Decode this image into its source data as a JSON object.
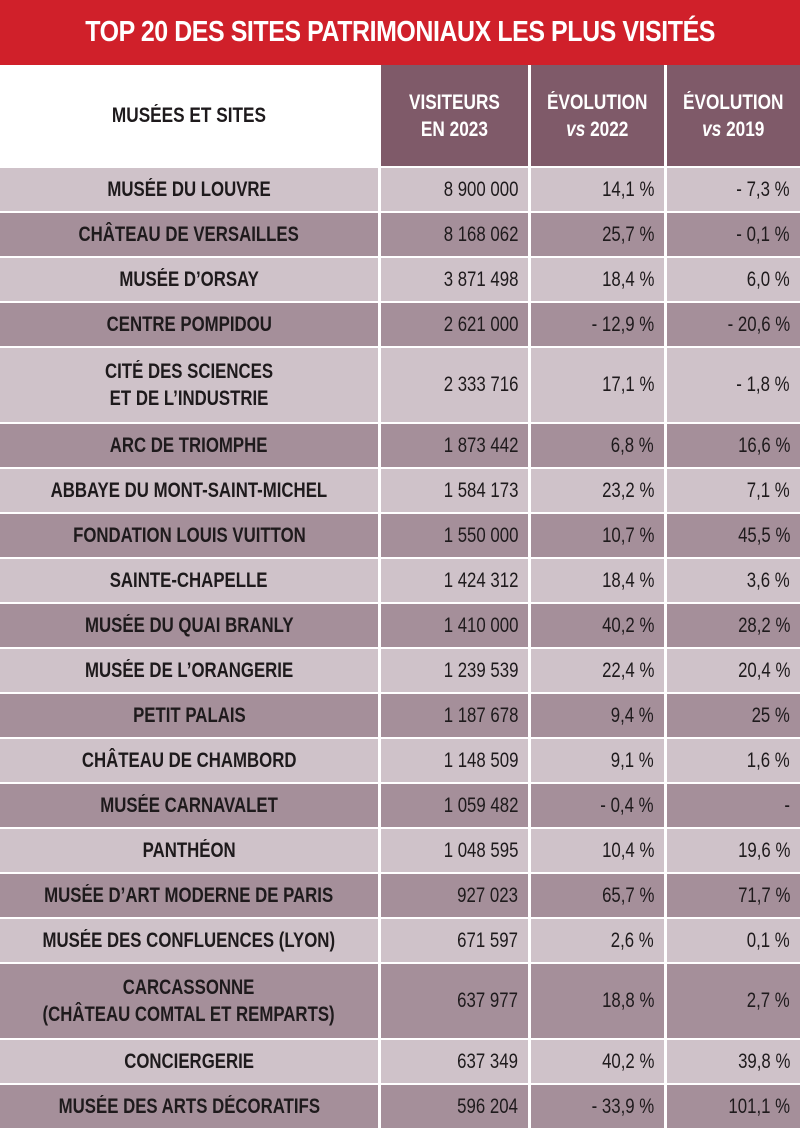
{
  "title": "TOP 20 DES SITES PATRIMONIAUX LES PLUS VISITÉS",
  "colors": {
    "title_bg": "#d0202a",
    "header_bg": "#7f5a69",
    "row_light": "#cfc2c9",
    "row_dark": "#a58f9a",
    "text": "#1e1a1c"
  },
  "headers": {
    "site": "MUSÉES ET SITES",
    "visitors_line1": "VISITEURS",
    "visitors_line2": "EN 2023",
    "evo2022_line1": "ÉVOLUTION",
    "evo2022_vs": "vs",
    "evo2022_year": " 2022",
    "evo2019_line1": "ÉVOLUTION",
    "evo2019_vs": "vs",
    "evo2019_year": " 2019"
  },
  "rows": [
    {
      "site": "MUSÉE DU LOUVRE",
      "visitors": "8 900 000",
      "evo2022": "14,1 %",
      "evo2019": "- 7,3 %"
    },
    {
      "site": "CHÂTEAU DE VERSAILLES",
      "visitors": "8 168 062",
      "evo2022": "25,7 %",
      "evo2019": "- 0,1 %"
    },
    {
      "site": "MUSÉE D’ORSAY",
      "visitors": "3 871 498",
      "evo2022": "18,4 %",
      "evo2019": "6,0 %"
    },
    {
      "site": "CENTRE POMPIDOU",
      "visitors": "2 621 000",
      "evo2022": "- 12,9 %",
      "evo2019": "- 20,6 %"
    },
    {
      "site": "CITÉ DES SCIENCES",
      "site_line2": "ET DE L’INDUSTRIE",
      "visitors": "2 333 716",
      "evo2022": "17,1 %",
      "evo2019": "- 1,8 %"
    },
    {
      "site": "ARC DE TRIOMPHE",
      "visitors": "1 873 442",
      "evo2022": "6,8 %",
      "evo2019": "16,6 %"
    },
    {
      "site": "ABBAYE DU MONT-SAINT-MICHEL",
      "visitors": "1 584 173",
      "evo2022": "23,2 %",
      "evo2019": "7,1 %"
    },
    {
      "site": "FONDATION LOUIS VUITTON",
      "visitors": "1 550 000",
      "evo2022": "10,7 %",
      "evo2019": "45,5 %"
    },
    {
      "site": "SAINTE-CHAPELLE",
      "visitors": "1 424 312",
      "evo2022": "18,4 %",
      "evo2019": "3,6 %"
    },
    {
      "site": "MUSÉE DU QUAI BRANLY",
      "visitors": "1 410 000",
      "evo2022": "40,2 %",
      "evo2019": "28,2 %"
    },
    {
      "site": "MUSÉE DE L’ORANGERIE",
      "visitors": "1 239 539",
      "evo2022": "22,4 %",
      "evo2019": "20,4 %"
    },
    {
      "site": "PETIT PALAIS",
      "visitors": "1 187 678",
      "evo2022": "9,4 %",
      "evo2019": "25 %"
    },
    {
      "site": "CHÂTEAU DE CHAMBORD",
      "visitors": "1 148 509",
      "evo2022": "9,1 %",
      "evo2019": "1,6 %"
    },
    {
      "site": "MUSÉE CARNAVALET",
      "visitors": "1 059 482",
      "evo2022": "- 0,4 %",
      "evo2019": "-"
    },
    {
      "site": "PANTHÉON",
      "visitors": "1 048 595",
      "evo2022": "10,4 %",
      "evo2019": "19,6 %"
    },
    {
      "site": "MUSÉE D’ART MODERNE DE PARIS",
      "visitors": "927 023",
      "evo2022": "65,7 %",
      "evo2019": "71,7 %"
    },
    {
      "site": "MUSÉE DES CONFLUENCES (LYON)",
      "visitors": "671 597",
      "evo2022": "2,6 %",
      "evo2019": "0,1 %"
    },
    {
      "site": "CARCASSONNE",
      "site_line2": "(CHÂTEAU COMTAL ET REMPARTS)",
      "visitors": "637 977",
      "evo2022": "18,8 %",
      "evo2019": "2,7 %"
    },
    {
      "site": "CONCIERGERIE",
      "visitors": "637 349",
      "evo2022": "40,2 %",
      "evo2019": "39,8 %"
    },
    {
      "site": "MUSÉE DES ARTS DÉCORATIFS",
      "visitors": "596 204",
      "evo2022": "- 33,9 %",
      "evo2019": "101,1 %"
    }
  ],
  "chart_data": {
    "type": "table",
    "title": "TOP 20 DES SITES PATRIMONIAUX LES PLUS VISITÉS",
    "columns": [
      "MUSÉES ET SITES",
      "VISITEURS EN 2023",
      "ÉVOLUTION vs 2022",
      "ÉVOLUTION vs 2019"
    ],
    "categories": [
      "MUSÉE DU LOUVRE",
      "CHÂTEAU DE VERSAILLES",
      "MUSÉE D’ORSAY",
      "CENTRE POMPIDOU",
      "CITÉ DES SCIENCES ET DE L’INDUSTRIE",
      "ARC DE TRIOMPHE",
      "ABBAYE DU MONT-SAINT-MICHEL",
      "FONDATION LOUIS VUITTON",
      "SAINTE-CHAPELLE",
      "MUSÉE DU QUAI BRANLY",
      "MUSÉE DE L’ORANGERIE",
      "PETIT PALAIS",
      "CHÂTEAU DE CHAMBORD",
      "MUSÉE CARNAVALET",
      "PANTHÉON",
      "MUSÉE D’ART MODERNE DE PARIS",
      "MUSÉE DES CONFLUENCES (LYON)",
      "CARCASSONNE (CHÂTEAU COMTAL ET REMPARTS)",
      "CONCIERGERIE",
      "MUSÉE DES ARTS DÉCORATIFS"
    ],
    "series": [
      {
        "name": "VISITEURS EN 2023",
        "values": [
          8900000,
          8168062,
          3871498,
          2621000,
          2333716,
          1873442,
          1584173,
          1550000,
          1424312,
          1410000,
          1239539,
          1187678,
          1148509,
          1059482,
          1048595,
          927023,
          671597,
          637977,
          637349,
          596204
        ]
      },
      {
        "name": "ÉVOLUTION vs 2022 (%)",
        "values": [
          14.1,
          25.7,
          18.4,
          -12.9,
          17.1,
          6.8,
          23.2,
          10.7,
          18.4,
          40.2,
          22.4,
          9.4,
          9.1,
          -0.4,
          10.4,
          65.7,
          2.6,
          18.8,
          40.2,
          -33.9
        ]
      },
      {
        "name": "ÉVOLUTION vs 2019 (%)",
        "values": [
          -7.3,
          -0.1,
          6.0,
          -20.6,
          -1.8,
          16.6,
          7.1,
          45.5,
          3.6,
          28.2,
          20.4,
          25,
          1.6,
          null,
          19.6,
          71.7,
          0.1,
          2.7,
          39.8,
          101.1
        ]
      }
    ]
  }
}
